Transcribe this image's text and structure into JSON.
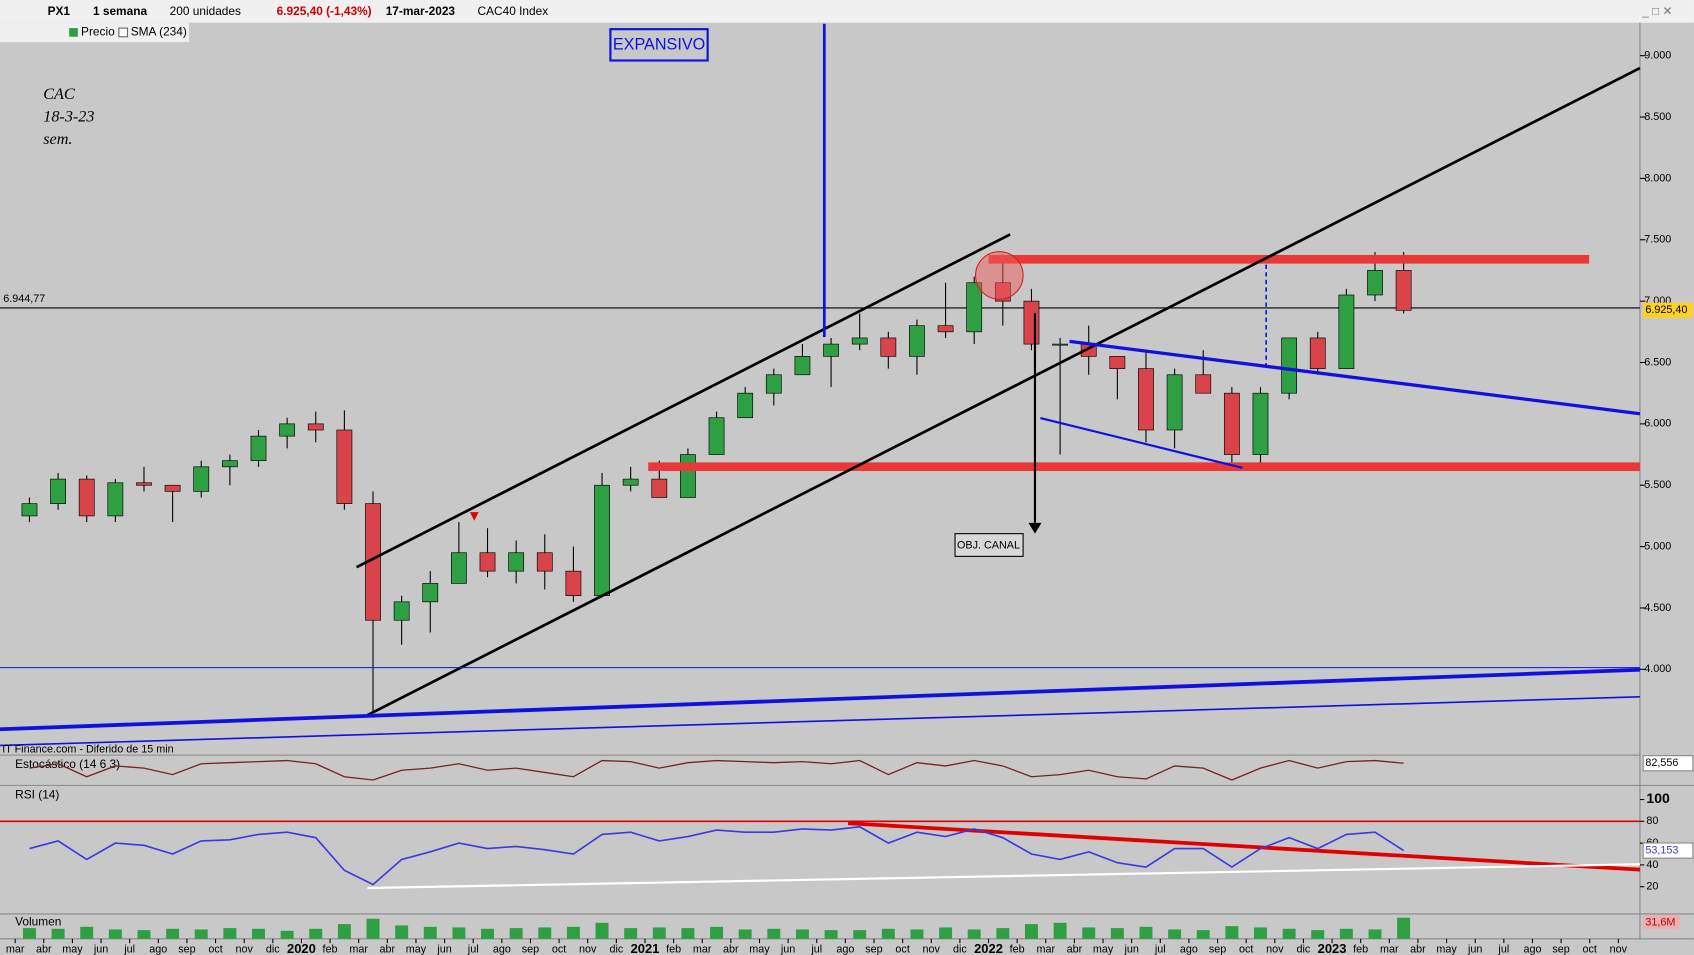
{
  "header": {
    "symbol": "PX1",
    "period": "1 semana",
    "units": "200 unidades",
    "price_change": "6.925,40 (-1,43%)",
    "date": "17-mar-2023",
    "instrument": "CAC40 Index",
    "legend_price": "Precio",
    "legend_sma": "SMA (234)",
    "source": "IT Finance.com - Diferido de 15 min"
  },
  "chart_data": [
    {
      "type": "candlestick",
      "colors": {
        "up": "#2ea043",
        "down": "#d9444a"
      },
      "x": [
        "2019-03",
        "2019-04",
        "2019-05",
        "2019-06",
        "2019-07",
        "2019-08",
        "2019-09",
        "2019-10",
        "2019-11",
        "2019-12",
        "2020-01",
        "2020-02",
        "2020-03",
        "2020-04",
        "2020-05",
        "2020-06",
        "2020-07",
        "2020-08",
        "2020-09",
        "2020-10",
        "2020-11",
        "2020-12",
        "2021-01",
        "2021-02",
        "2021-03",
        "2021-04",
        "2021-05",
        "2021-06",
        "2021-07",
        "2021-08",
        "2021-09",
        "2021-10",
        "2021-11",
        "2021-12",
        "2022-01",
        "2022-02",
        "2022-03",
        "2022-04",
        "2022-05",
        "2022-06",
        "2022-07",
        "2022-08",
        "2022-09",
        "2022-10",
        "2022-11",
        "2022-12",
        "2023-01",
        "2023-02",
        "2023-03"
      ],
      "open": [
        5250,
        5350,
        5550,
        5250,
        5520,
        5500,
        5450,
        5650,
        5700,
        5900,
        6000,
        5950,
        5350,
        4400,
        4550,
        4700,
        4950,
        4800,
        4950,
        4800,
        4600,
        5500,
        5550,
        5400,
        5750,
        6050,
        6250,
        6400,
        6550,
        6650,
        6700,
        6550,
        6800,
        6750,
        7150,
        7000,
        6650,
        6650,
        6550,
        6450,
        5950,
        6400,
        6250,
        5750,
        6250,
        6700,
        6450,
        7050,
        7250
      ],
      "high": [
        5400,
        5600,
        5580,
        5550,
        5650,
        5500,
        5700,
        5750,
        5950,
        6050,
        6100,
        6110,
        5450,
        4600,
        4800,
        5200,
        5150,
        5050,
        5100,
        5000,
        5600,
        5650,
        5700,
        5800,
        6100,
        6300,
        6450,
        6650,
        6700,
        6900,
        6750,
        6850,
        7150,
        7200,
        7380,
        7100,
        6700,
        6800,
        6550,
        6600,
        6450,
        6600,
        6300,
        6300,
        6700,
        6750,
        7100,
        7400,
        7400
      ],
      "low": [
        5200,
        5300,
        5200,
        5200,
        5450,
        5200,
        5400,
        5500,
        5650,
        5800,
        5850,
        5300,
        3650,
        4200,
        4300,
        4700,
        4750,
        4700,
        4650,
        4550,
        4600,
        5450,
        5400,
        5400,
        5750,
        6050,
        6150,
        6400,
        6300,
        6600,
        6450,
        6400,
        6700,
        6650,
        6800,
        6600,
        5750,
        6400,
        6200,
        5850,
        5800,
        6250,
        5650,
        5650,
        6200,
        6400,
        6450,
        7000,
        6900
      ],
      "close": [
        5350,
        5550,
        5250,
        5520,
        5500,
        5450,
        5650,
        5700,
        5900,
        6000,
        5950,
        5350,
        4400,
        4550,
        4700,
        4950,
        4800,
        4950,
        4800,
        4600,
        5500,
        5550,
        5400,
        5750,
        6050,
        6250,
        6400,
        6550,
        6650,
        6700,
        6550,
        6800,
        6750,
        7150,
        7000,
        6650,
        6650,
        6550,
        6450,
        5950,
        6400,
        6250,
        5750,
        6250,
        6700,
        6450,
        7050,
        7250,
        6925.4
      ],
      "close_labels": [
        null,
        null,
        null,
        null,
        null,
        null,
        null,
        null,
        null,
        null,
        null,
        null,
        null,
        null,
        null,
        null,
        null,
        null,
        null,
        null,
        null,
        null,
        null,
        null,
        null,
        null,
        null,
        null,
        null,
        null,
        null,
        null,
        null,
        null,
        null,
        null,
        null,
        null,
        null,
        null,
        null,
        null,
        null,
        null,
        null,
        null,
        null,
        null,
        "6.925,40"
      ],
      "ylim": [
        3380,
        9260
      ],
      "yticks": [
        {
          "value": 4000,
          "label": "4.000"
        },
        {
          "value": 4500,
          "label": "4.500"
        },
        {
          "value": 5000,
          "label": "5.000"
        },
        {
          "value": 5500,
          "label": "5.500"
        },
        {
          "value": 6000,
          "label": "6.000"
        },
        {
          "value": 6500,
          "label": "6.500"
        },
        {
          "value": 7000,
          "label": "7.000"
        },
        {
          "value": 7500,
          "label": "7.500"
        },
        {
          "value": 8000,
          "label": "8.000"
        },
        {
          "value": 8500,
          "label": "8.500"
        },
        {
          "value": 9000,
          "label": "9.000"
        }
      ],
      "reference_line": {
        "value": 6944.77,
        "label": "6.944,77"
      },
      "xticks": [
        {
          "value": "2019-03",
          "label": "mar"
        },
        {
          "value": "2019-04",
          "label": "abr"
        },
        {
          "value": "2019-05",
          "label": "may"
        },
        {
          "value": "2019-06",
          "label": "jun"
        },
        {
          "value": "2019-07",
          "label": "jul"
        },
        {
          "value": "2019-08",
          "label": "ago"
        },
        {
          "value": "2019-09",
          "label": "sep"
        },
        {
          "value": "2019-10",
          "label": "oct"
        },
        {
          "value": "2019-11",
          "label": "nov"
        },
        {
          "value": "2019-12",
          "label": "dic"
        },
        {
          "value": "2020-01",
          "label": "2020"
        },
        {
          "value": "2020-02",
          "label": "feb"
        },
        {
          "value": "2020-03",
          "label": "mar"
        },
        {
          "value": "2020-04",
          "label": "abr"
        },
        {
          "value": "2020-05",
          "label": "may"
        },
        {
          "value": "2020-06",
          "label": "jun"
        },
        {
          "value": "2020-07",
          "label": "jul"
        },
        {
          "value": "2020-08",
          "label": "ago"
        },
        {
          "value": "2020-09",
          "label": "sep"
        },
        {
          "value": "2020-10",
          "label": "oct"
        },
        {
          "value": "2020-11",
          "label": "nov"
        },
        {
          "value": "2020-12",
          "label": "dic"
        },
        {
          "value": "2021-01",
          "label": "2021"
        },
        {
          "value": "2021-02",
          "label": "feb"
        },
        {
          "value": "2021-03",
          "label": "mar"
        },
        {
          "value": "2021-04",
          "label": "abr"
        },
        {
          "value": "2021-05",
          "label": "may"
        },
        {
          "value": "2021-06",
          "label": "jun"
        },
        {
          "value": "2021-07",
          "label": "jul"
        },
        {
          "value": "2021-08",
          "label": "ago"
        },
        {
          "value": "2021-09",
          "label": "sep"
        },
        {
          "value": "2021-10",
          "label": "oct"
        },
        {
          "value": "2021-11",
          "label": "nov"
        },
        {
          "value": "2021-12",
          "label": "dic"
        },
        {
          "value": "2022-01",
          "label": "2022"
        },
        {
          "value": "2022-02",
          "label": "feb"
        },
        {
          "value": "2022-03",
          "label": "mar"
        },
        {
          "value": "2022-04",
          "label": "abr"
        },
        {
          "value": "2022-05",
          "label": "may"
        },
        {
          "value": "2022-06",
          "label": "jun"
        },
        {
          "value": "2022-07",
          "label": "jul"
        },
        {
          "value": "2022-08",
          "label": "ago"
        },
        {
          "value": "2022-09",
          "label": "sep"
        },
        {
          "value": "2022-10",
          "label": "oct"
        },
        {
          "value": "2022-11",
          "label": "nov"
        },
        {
          "value": "2022-12",
          "label": "dic"
        },
        {
          "value": "2023-01",
          "label": "2023"
        },
        {
          "value": "2023-02",
          "label": "feb"
        },
        {
          "value": "2023-03",
          "label": "mar"
        },
        {
          "value": "2023-04",
          "label": "abr"
        },
        {
          "value": "2023-05",
          "label": "may"
        },
        {
          "value": "2023-06",
          "label": "jun"
        },
        {
          "value": "2023-07",
          "label": "jul"
        },
        {
          "value": "2023-08",
          "label": "ago"
        },
        {
          "value": "2023-09",
          "label": "sep"
        },
        {
          "value": "2023-10",
          "label": "oct"
        },
        {
          "value": "2023-11",
          "label": "nov"
        }
      ],
      "annotations": {
        "box": "EXPANSIVO",
        "note": [
          "CAC",
          "18-3-23",
          "sem."
        ],
        "target": "OBJ. CANAL"
      }
    },
    {
      "type": "line",
      "title": "Estocástico (14 6 3)",
      "color": "#7a2020",
      "ylim": [
        0,
        100
      ],
      "values": [
        60,
        80,
        20,
        70,
        60,
        30,
        80,
        85,
        90,
        95,
        80,
        20,
        5,
        50,
        60,
        80,
        50,
        60,
        40,
        20,
        95,
        90,
        60,
        85,
        95,
        90,
        85,
        90,
        80,
        95,
        30,
        85,
        70,
        95,
        70,
        20,
        30,
        50,
        20,
        10,
        70,
        60,
        5,
        60,
        95,
        60,
        90,
        95,
        82.556
      ],
      "value_labels": [
        null,
        null,
        null,
        null,
        null,
        null,
        null,
        null,
        null,
        null,
        null,
        null,
        null,
        null,
        null,
        null,
        null,
        null,
        null,
        null,
        null,
        null,
        null,
        null,
        null,
        null,
        null,
        null,
        null,
        null,
        null,
        null,
        null,
        null,
        null,
        null,
        null,
        null,
        null,
        null,
        null,
        null,
        null,
        null,
        null,
        null,
        null,
        null,
        "82,556"
      ]
    },
    {
      "type": "line",
      "title": "RSI (14)",
      "color": "#3a3ae0",
      "ylim": [
        -5,
        110
      ],
      "yticks": [
        20,
        40,
        60,
        80,
        100
      ],
      "values": [
        55,
        62,
        45,
        60,
        58,
        50,
        62,
        63,
        68,
        70,
        65,
        35,
        22,
        45,
        52,
        60,
        55,
        57,
        54,
        50,
        68,
        70,
        62,
        66,
        72,
        70,
        70,
        73,
        72,
        75,
        60,
        70,
        66,
        73,
        65,
        50,
        45,
        52,
        42,
        38,
        55,
        55,
        38,
        55,
        65,
        55,
        68,
        70,
        53.153
      ],
      "value_labels": [
        null,
        null,
        null,
        null,
        null,
        null,
        null,
        null,
        null,
        null,
        null,
        null,
        null,
        null,
        null,
        null,
        null,
        null,
        null,
        null,
        null,
        null,
        null,
        null,
        null,
        null,
        null,
        null,
        null,
        null,
        null,
        null,
        null,
        null,
        null,
        null,
        null,
        null,
        null,
        null,
        null,
        null,
        null,
        null,
        null,
        null,
        null,
        null,
        "53,153"
      ]
    },
    {
      "type": "bar",
      "title": "Volumen",
      "color": "#2ea043",
      "ylim": [
        0,
        34
      ],
      "values": [
        16,
        15,
        18,
        14,
        13,
        15,
        14,
        16,
        15,
        12,
        15,
        22,
        30,
        20,
        18,
        17,
        15,
        16,
        17,
        18,
        24,
        16,
        17,
        16,
        18,
        14,
        15,
        14,
        13,
        13,
        15,
        14,
        17,
        14,
        16,
        22,
        24,
        17,
        16,
        18,
        14,
        13,
        19,
        17,
        15,
        13,
        15,
        14,
        31.6
      ],
      "value_labels": [
        null,
        null,
        null,
        null,
        null,
        null,
        null,
        null,
        null,
        null,
        null,
        null,
        null,
        null,
        null,
        null,
        null,
        null,
        null,
        null,
        null,
        null,
        null,
        null,
        null,
        null,
        null,
        null,
        null,
        null,
        null,
        null,
        null,
        null,
        null,
        null,
        null,
        null,
        null,
        null,
        null,
        null,
        null,
        null,
        null,
        null,
        null,
        null,
        "31,6M"
      ]
    }
  ]
}
